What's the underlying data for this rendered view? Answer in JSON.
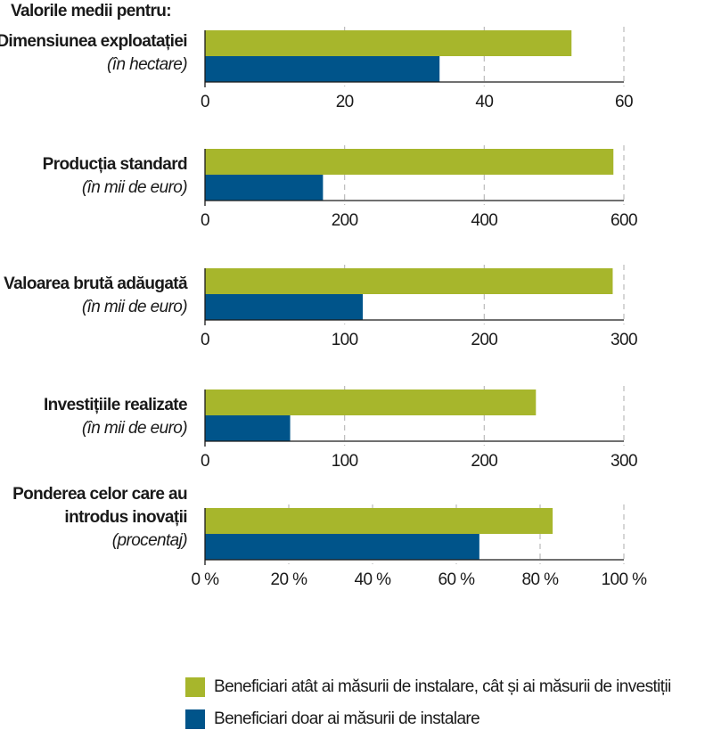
{
  "header": "Valorile medii pentru:",
  "colors": {
    "series_a": "#a7b62c",
    "series_b": "#00548a",
    "grid": "#bbbbbb",
    "axis": "#1a1a1a"
  },
  "legend": [
    "Beneficiari atât ai măsurii de instalare, cât și ai măsurii de investiții",
    "Beneficiari doar ai măsurii de instalare"
  ],
  "chart_data": [
    {
      "type": "bar",
      "title": "Dimensiunea exploatației",
      "title_lines": [
        "Dimensiunea exploatației"
      ],
      "unit": "(în hectare)",
      "xlim": [
        0,
        60
      ],
      "ticks": [
        0,
        20,
        40,
        60
      ],
      "tick_labels": [
        "0",
        "20",
        "40",
        "60"
      ],
      "series": [
        {
          "name": "Beneficiari atât ai măsurii de instalare, cât și ai măsurii de investiții",
          "values": [
            52.5
          ]
        },
        {
          "name": "Beneficiari doar ai măsurii de instalare",
          "values": [
            33.6
          ]
        }
      ]
    },
    {
      "type": "bar",
      "title": "Producția standard",
      "title_lines": [
        "Producția standard"
      ],
      "unit": "(în mii de euro)",
      "xlim": [
        0,
        600
      ],
      "ticks": [
        0,
        200,
        400,
        600
      ],
      "tick_labels": [
        "0",
        "200",
        "400",
        "600"
      ],
      "series": [
        {
          "name": "Beneficiari atât ai măsurii de instalare, cât și ai măsurii de investiții",
          "values": [
            585
          ]
        },
        {
          "name": "Beneficiari doar ai măsurii de instalare",
          "values": [
            169
          ]
        }
      ]
    },
    {
      "type": "bar",
      "title": "Valoarea brută adăugată",
      "title_lines": [
        "Valoarea brută adăugată"
      ],
      "unit": "(în mii de euro)",
      "xlim": [
        0,
        300
      ],
      "ticks": [
        0,
        100,
        200,
        300
      ],
      "tick_labels": [
        "0",
        "100",
        "200",
        "300"
      ],
      "series": [
        {
          "name": "Beneficiari atât ai măsurii de instalare, cât și ai măsurii de investiții",
          "values": [
            292
          ]
        },
        {
          "name": "Beneficiari doar ai măsurii de instalare",
          "values": [
            113
          ]
        }
      ]
    },
    {
      "type": "bar",
      "title": "Investițiile realizate",
      "title_lines": [
        "Investițiile realizate"
      ],
      "unit": "(în mii de euro)",
      "xlim": [
        0,
        300
      ],
      "ticks": [
        0,
        100,
        200,
        300
      ],
      "tick_labels": [
        "0",
        "100",
        "200",
        "300"
      ],
      "series": [
        {
          "name": "Beneficiari atât ai măsurii de instalare, cât și ai măsurii de investiții",
          "values": [
            237
          ]
        },
        {
          "name": "Beneficiari doar ai măsurii de instalare",
          "values": [
            61
          ]
        }
      ]
    },
    {
      "type": "bar",
      "title": "Ponderea celor care au introdus inovații",
      "title_lines": [
        "Ponderea celor care au",
        "introdus inovații"
      ],
      "unit": "(procentaj)",
      "xlim": [
        0,
        100
      ],
      "ticks": [
        0,
        20,
        40,
        60,
        80,
        100
      ],
      "tick_labels": [
        "0 %",
        "20 %",
        "40 %",
        "60 %",
        "80 %",
        "100 %"
      ],
      "series": [
        {
          "name": "Beneficiari atât ai măsurii de instalare, cât și ai măsurii de investiții",
          "values": [
            83
          ]
        },
        {
          "name": "Beneficiari doar ai măsurii de instalare",
          "values": [
            65.5
          ]
        }
      ]
    }
  ]
}
